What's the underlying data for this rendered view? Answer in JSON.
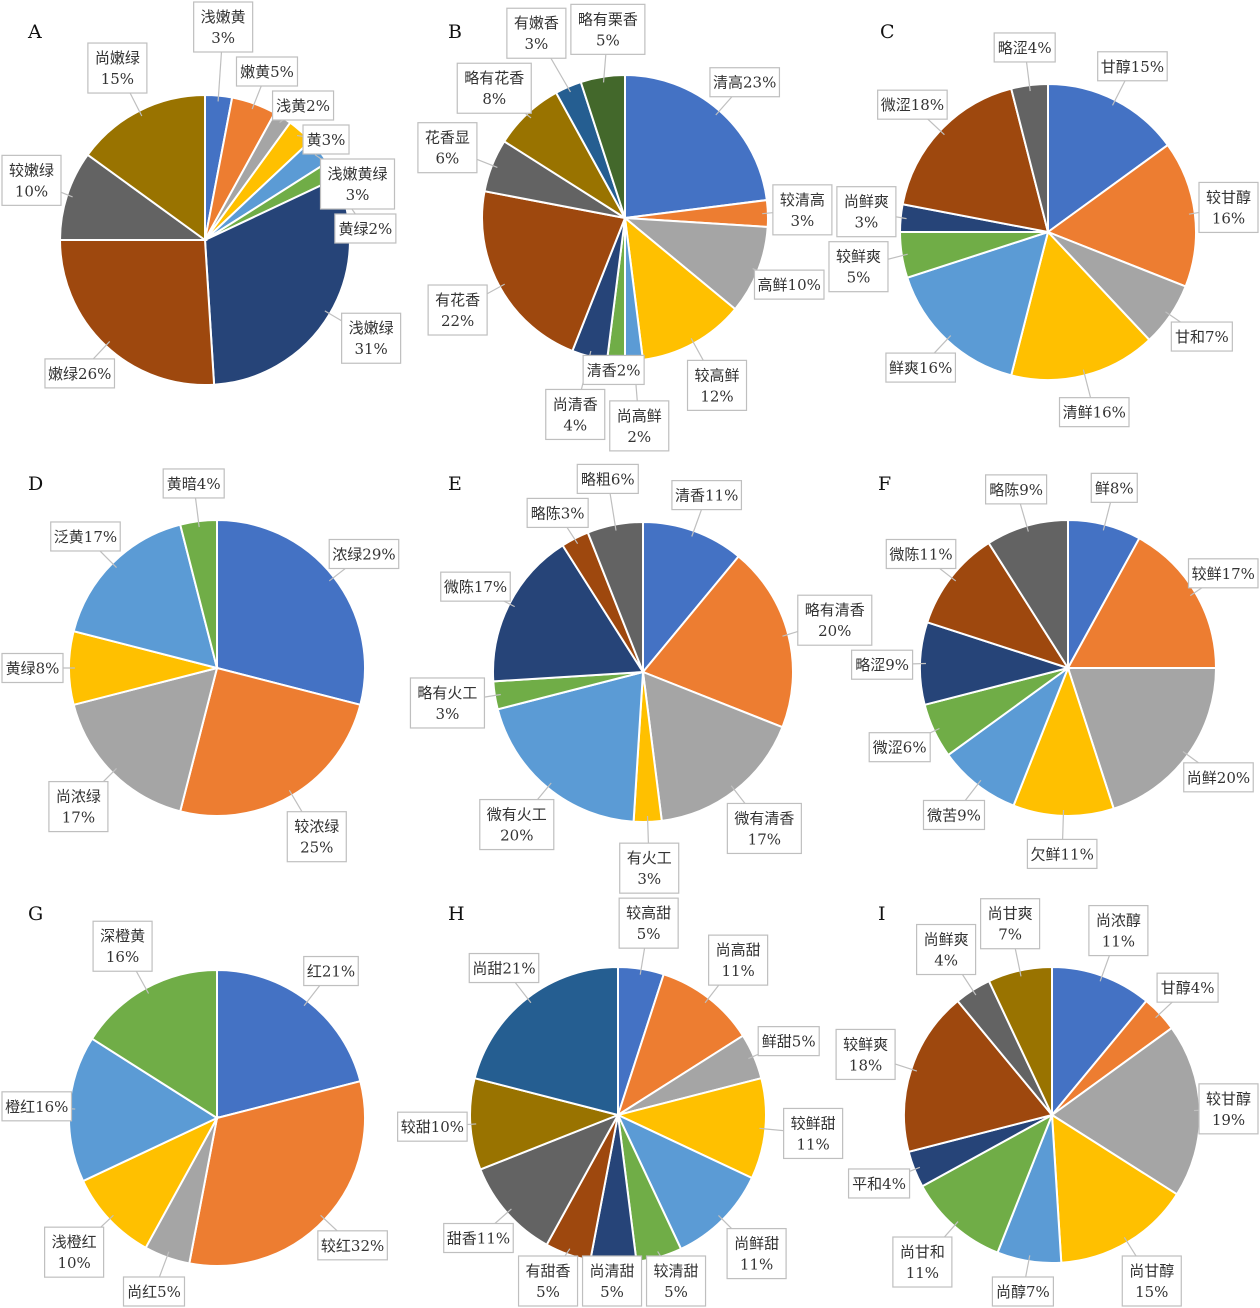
{
  "chart_data": [
    {
      "type": "pie",
      "panel": "A",
      "labels": [
        "浅嫩黄",
        "嫩黄",
        "浅黄",
        "黄",
        "浅嫩黄绿",
        "黄绿",
        "浅嫩绿",
        "嫩绿",
        "较嫩绿",
        "尚嫩绿"
      ],
      "values": [
        3,
        5,
        2,
        3,
        3,
        2,
        31,
        26,
        10,
        15
      ]
    },
    {
      "type": "pie",
      "panel": "B",
      "labels": [
        "清高",
        "较清高",
        "高鲜",
        "较高鲜",
        "尚高鲜",
        "清香",
        "尚清香",
        "有花香",
        "花香显",
        "略有花香",
        "有嫩香",
        "略有栗香"
      ],
      "values": [
        23,
        3,
        10,
        12,
        2,
        2,
        4,
        22,
        6,
        8,
        3,
        5
      ]
    },
    {
      "type": "pie",
      "panel": "C",
      "labels": [
        "甘醇",
        "较甘醇",
        "甘和",
        "清鲜",
        "鲜爽",
        "较鲜爽",
        "尚鲜爽",
        "微涩",
        "略涩"
      ],
      "values": [
        15,
        16,
        7,
        16,
        16,
        5,
        3,
        18,
        4
      ]
    },
    {
      "type": "pie",
      "panel": "D",
      "labels": [
        "浓绿",
        "较浓绿",
        "尚浓绿",
        "黄绿",
        "泛黄",
        "黄暗"
      ],
      "values": [
        29,
        25,
        17,
        8,
        17,
        4
      ]
    },
    {
      "type": "pie",
      "panel": "E",
      "labels": [
        "清香",
        "略有清香",
        "微有清香",
        "有火工",
        "微有火工",
        "略有火工",
        "微陈",
        "略陈",
        "略粗"
      ],
      "values": [
        11,
        20,
        17,
        3,
        20,
        3,
        17,
        3,
        6
      ]
    },
    {
      "type": "pie",
      "panel": "F",
      "labels": [
        "鲜",
        "较鲜",
        "尚鲜",
        "欠鲜",
        "微苦",
        "微涩",
        "略涩",
        "微陈",
        "略陈"
      ],
      "values": [
        8,
        17,
        20,
        11,
        9,
        6,
        9,
        11,
        9
      ]
    },
    {
      "type": "pie",
      "panel": "G",
      "labels": [
        "红",
        "较红",
        "尚红",
        "浅橙红",
        "橙红",
        "深橙黄"
      ],
      "values": [
        21,
        32,
        5,
        10,
        16,
        16
      ]
    },
    {
      "type": "pie",
      "panel": "H",
      "labels": [
        "较高甜",
        "尚高甜",
        "鲜甜",
        "较鲜甜",
        "尚鲜甜",
        "较清甜",
        "尚清甜",
        "有甜香",
        "甜香",
        "较甜",
        "尚甜"
      ],
      "values": [
        5,
        11,
        5,
        11,
        11,
        5,
        5,
        5,
        11,
        10,
        21
      ]
    },
    {
      "type": "pie",
      "panel": "I",
      "labels": [
        "尚浓醇",
        "甘醇",
        "较甘醇",
        "尚甘醇",
        "尚醇",
        "尚甘和",
        "平和",
        "较鲜爽",
        "尚鲜爽",
        "尚甘爽"
      ],
      "values": [
        11,
        4,
        19,
        15,
        7,
        11,
        4,
        18,
        4,
        7
      ]
    }
  ],
  "value_suffix": "%",
  "colors": [
    "#4472C4",
    "#ED7D31",
    "#A5A5A5",
    "#FFC000",
    "#5B9BD5",
    "#70AD47",
    "#264478",
    "#9E480E",
    "#636363",
    "#997300",
    "#255E91",
    "#43682B"
  ]
}
